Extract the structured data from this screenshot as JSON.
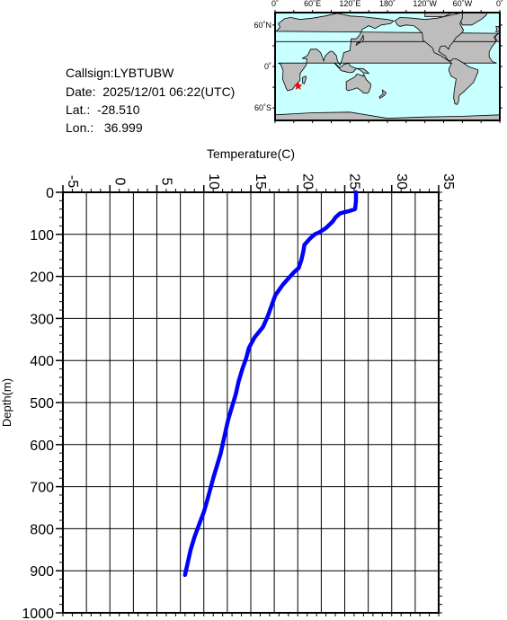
{
  "station": {
    "callsign_label": "Callsign:",
    "callsign": "LYBTUBW",
    "date_label": "Date:",
    "date": "2025/12/01 06:22(UTC)",
    "lat_label": "Lat.:",
    "lat": "-28.510",
    "lon_label": "Lon.:",
    "lon": "36.999"
  },
  "map": {
    "top_labels": [
      "0˚",
      "60˚E",
      "120˚E",
      "180˚",
      "120˚W",
      "60˚W",
      "0˚"
    ],
    "side_labels": [
      "60˚N",
      "0˚",
      "60˚S"
    ],
    "ocean_color": "#c8ffff",
    "land_color": "#bdbdbd",
    "marker_color": "#ff0000",
    "marker": {
      "lon": 36.999,
      "lat": -28.51
    }
  },
  "chart_data": {
    "type": "line",
    "title": "",
    "xlabel": "Temperature(C)",
    "ylabel": "Depth(m)",
    "xlim": [
      -5,
      35
    ],
    "ylim": [
      0,
      1000
    ],
    "y_inverted": true,
    "x_axis_position": "top",
    "x_ticks": [
      "-5",
      "0",
      "5",
      "10",
      "15",
      "20",
      "25",
      "30",
      "35"
    ],
    "y_ticks": [
      "0",
      "100",
      "200",
      "300",
      "400",
      "500",
      "600",
      "700",
      "800",
      "900",
      "1000"
    ],
    "grid": true,
    "series": [
      {
        "color": "#0000ff",
        "x": [
          26.2,
          26.2,
          26.1,
          25.4,
          24.5,
          24.0,
          23.7,
          23.0,
          22.3,
          21.8,
          21.3,
          20.7,
          20.6,
          20.4,
          20.1,
          19.6,
          19.0,
          18.4,
          17.6,
          17.2,
          16.8,
          16.3,
          15.4,
          14.8,
          14.5,
          14.1,
          13.7,
          13.4,
          13.0,
          12.6,
          12.2,
          11.8,
          11.0,
          10.4,
          10.0,
          9.5,
          9.0,
          8.6,
          8.2,
          8.0
        ],
        "y": [
          0,
          20,
          40,
          45,
          50,
          60,
          70,
          85,
          95,
          100,
          110,
          125,
          140,
          160,
          180,
          190,
          205,
          220,
          245,
          270,
          295,
          320,
          345,
          370,
          395,
          420,
          450,
          480,
          510,
          540,
          580,
          620,
          680,
          730,
          760,
          790,
          820,
          850,
          890,
          910
        ]
      }
    ]
  }
}
